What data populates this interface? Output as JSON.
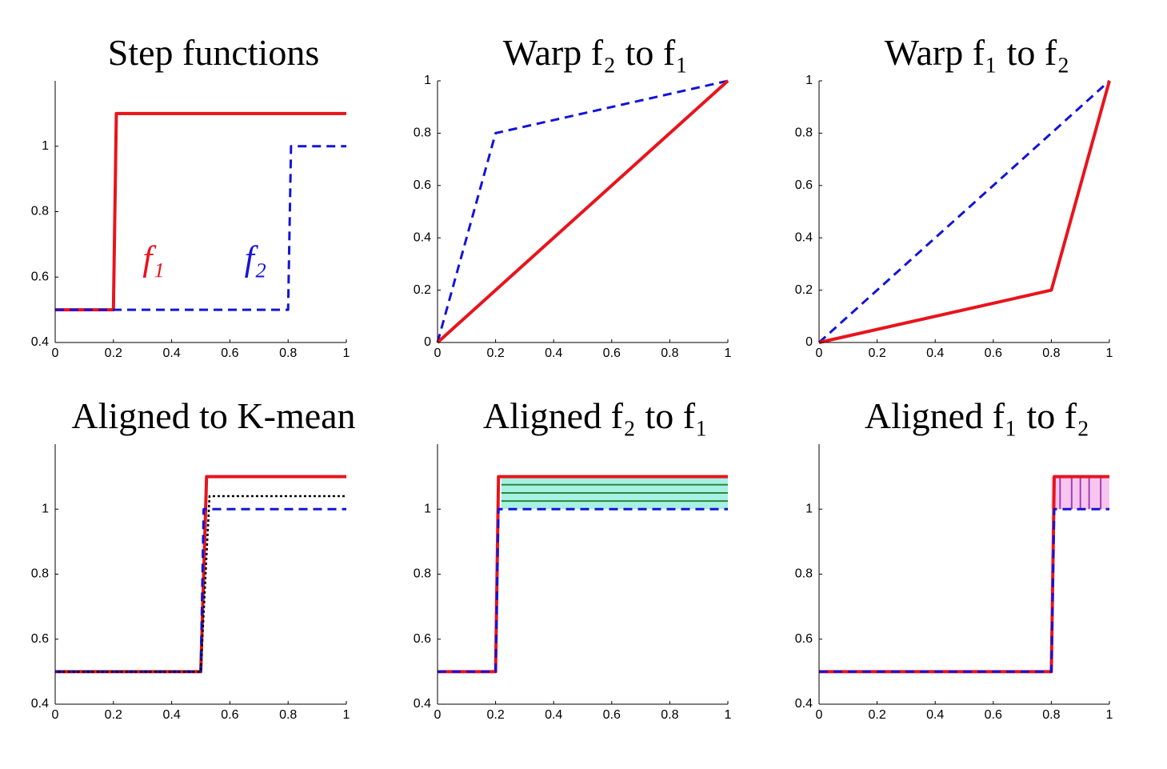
{
  "chart_data": [
    {
      "type": "line",
      "title": "Step functions",
      "xlim": [
        0,
        1
      ],
      "ylim": [
        0.4,
        1.2
      ],
      "xticks": [
        0,
        0.2,
        0.4,
        0.6,
        0.8,
        1
      ],
      "yticks": [
        0.4,
        0.6,
        0.8,
        1
      ],
      "series": [
        {
          "name": "f₁",
          "color": "#e8141c",
          "style": "solid",
          "x": [
            0,
            0.2,
            0.21,
            1
          ],
          "values": [
            0.5,
            0.5,
            1.1,
            1.1
          ]
        },
        {
          "name": "f₂",
          "color": "#1414d8",
          "style": "dashed",
          "x": [
            0,
            0.8,
            0.81,
            1
          ],
          "values": [
            0.5,
            0.5,
            1,
            1
          ]
        }
      ]
    },
    {
      "type": "line",
      "title": "Warp f₂ to f₁",
      "xlim": [
        0,
        1
      ],
      "ylim": [
        0,
        1
      ],
      "xticks": [
        0,
        0.2,
        0.4,
        0.6,
        0.8,
        1
      ],
      "yticks": [
        0,
        0.2,
        0.4,
        0.6,
        0.8,
        1
      ],
      "series": [
        {
          "color": "#1414d8",
          "style": "dashed",
          "x": [
            0,
            0.2,
            1
          ],
          "values": [
            0,
            0.8,
            1
          ]
        },
        {
          "color": "#e8141c",
          "style": "solid",
          "x": [
            0,
            1
          ],
          "values": [
            0,
            1
          ]
        }
      ]
    },
    {
      "type": "line",
      "title": "Warp f₁ to f₂",
      "xlim": [
        0,
        1
      ],
      "ylim": [
        0,
        1
      ],
      "xticks": [
        0,
        0.2,
        0.4,
        0.6,
        0.8,
        1
      ],
      "yticks": [
        0,
        0.2,
        0.4,
        0.6,
        0.8,
        1
      ],
      "series": [
        {
          "color": "#1414d8",
          "style": "dashed",
          "x": [
            0,
            1
          ],
          "values": [
            0,
            1
          ]
        },
        {
          "color": "#e8141c",
          "style": "solid",
          "x": [
            0,
            0.8,
            1
          ],
          "values": [
            0,
            0.2,
            1
          ]
        }
      ]
    },
    {
      "type": "line",
      "title": "Aligned to K-mean",
      "xlim": [
        0,
        1
      ],
      "ylim": [
        0.4,
        1.2
      ],
      "xticks": [
        0,
        0.2,
        0.4,
        0.6,
        0.8,
        1
      ],
      "yticks": [
        0.4,
        0.6,
        0.8,
        1
      ],
      "series": [
        {
          "color": "#e8141c",
          "style": "solid",
          "x": [
            0,
            0.5,
            0.52,
            1
          ],
          "values": [
            0.5,
            0.5,
            1.1,
            1.1
          ]
        },
        {
          "color": "#1414d8",
          "style": "dashed",
          "x": [
            0,
            0.5,
            0.51,
            1
          ],
          "values": [
            0.5,
            0.5,
            1,
            1
          ]
        },
        {
          "color": "#000000",
          "style": "dotted",
          "x": [
            0.01,
            0.5,
            0.53,
            1
          ],
          "values": [
            0.5,
            0.5,
            1.04,
            1.04
          ]
        }
      ]
    },
    {
      "type": "line",
      "title": "Aligned f₂ to f₁",
      "xlim": [
        0,
        1
      ],
      "ylim": [
        0.4,
        1.2
      ],
      "xticks": [
        0,
        0.2,
        0.4,
        0.6,
        0.8,
        1
      ],
      "yticks": [
        0.4,
        0.6,
        0.8,
        1
      ],
      "fill": {
        "x": [
          0.22,
          1
        ],
        "lower": 1,
        "upper": 1.1,
        "color": "#a6f0e4"
      },
      "hatch": {
        "orientation": "h",
        "values": [
          1.025,
          1.05,
          1.075
        ],
        "color": "#2a8a3a"
      },
      "series": [
        {
          "color": "#e8141c",
          "style": "solid",
          "x": [
            0,
            0.2,
            0.21,
            1
          ],
          "values": [
            0.5,
            0.5,
            1.1,
            1.1
          ]
        },
        {
          "color": "#1414d8",
          "style": "dashed",
          "x": [
            0,
            0.2,
            0.21,
            1
          ],
          "values": [
            0.5,
            0.5,
            1,
            1
          ]
        }
      ]
    },
    {
      "type": "line",
      "title": "Aligned f₁ to f₂",
      "xlim": [
        0,
        1
      ],
      "ylim": [
        0.4,
        1.2
      ],
      "xticks": [
        0,
        0.2,
        0.4,
        0.6,
        0.8,
        1
      ],
      "yticks": [
        0.4,
        0.6,
        0.8,
        1
      ],
      "fill": {
        "x": [
          0.8,
          1
        ],
        "lower": 1,
        "upper": 1.1,
        "color": "#f6c6ee"
      },
      "hatch": {
        "orientation": "v",
        "values": [
          0.83,
          0.87,
          0.9,
          0.93,
          0.97
        ],
        "color": "#a040b8"
      },
      "series": [
        {
          "color": "#e8141c",
          "style": "solid",
          "x": [
            0,
            0.8,
            0.81,
            1
          ],
          "values": [
            0.5,
            0.5,
            1.1,
            1.1
          ]
        },
        {
          "color": "#1414d8",
          "style": "dashed",
          "x": [
            0,
            0.8,
            0.81,
            1
          ],
          "values": [
            0.5,
            0.5,
            1,
            1
          ]
        }
      ]
    }
  ]
}
